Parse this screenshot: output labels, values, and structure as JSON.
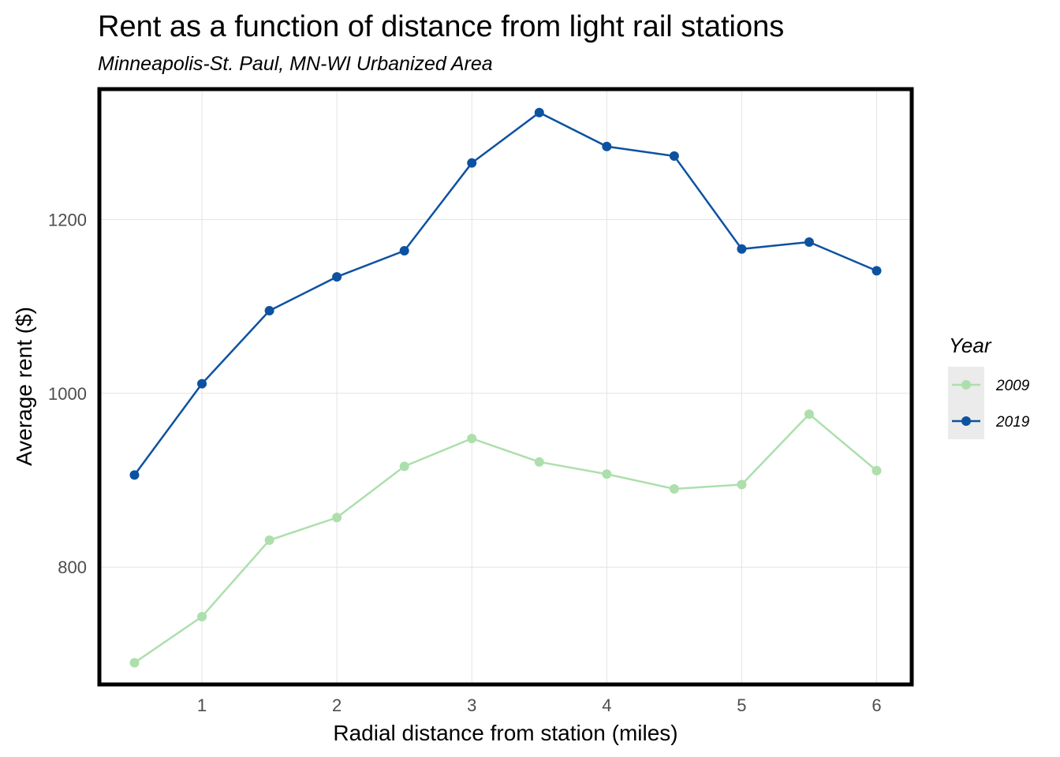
{
  "chart_data": {
    "type": "line",
    "title": "Rent as a function of distance from light rail stations",
    "subtitle": "Minneapolis-St. Paul, MN-WI Urbanized Area",
    "xlabel": "Radial distance from station (miles)",
    "ylabel": "Average rent ($)",
    "xlim": [
      0.24,
      6.26
    ],
    "ylim": [
      665,
      1350
    ],
    "xticks": [
      1,
      2,
      3,
      4,
      5,
      6
    ],
    "yticks": [
      800,
      1000,
      1200
    ],
    "grid": true,
    "legend": {
      "title": "Year",
      "position": "right"
    },
    "x": [
      0.5,
      1,
      1.5,
      2,
      2.5,
      3,
      3.5,
      4,
      4.5,
      5,
      5.5,
      6
    ],
    "series": [
      {
        "name": "2009",
        "color": "#addfad",
        "values": [
          690,
          743,
          831,
          857,
          916,
          948,
          921,
          907,
          890,
          895,
          976,
          911
        ]
      },
      {
        "name": "2019",
        "color": "#0d52a0",
        "values": [
          906,
          1011,
          1095,
          1134,
          1164,
          1265,
          1323,
          1284,
          1273,
          1166,
          1174,
          1141
        ]
      }
    ]
  }
}
